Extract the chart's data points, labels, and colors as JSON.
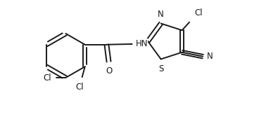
{
  "background_color": "#ffffff",
  "line_color": "#1a1a1a",
  "lw": 1.4,
  "fs": 8.5,
  "figsize": [
    3.68,
    1.63
  ],
  "dpi": 100,
  "xlim": [
    0,
    9.2
  ],
  "ylim": [
    0,
    4.1
  ]
}
